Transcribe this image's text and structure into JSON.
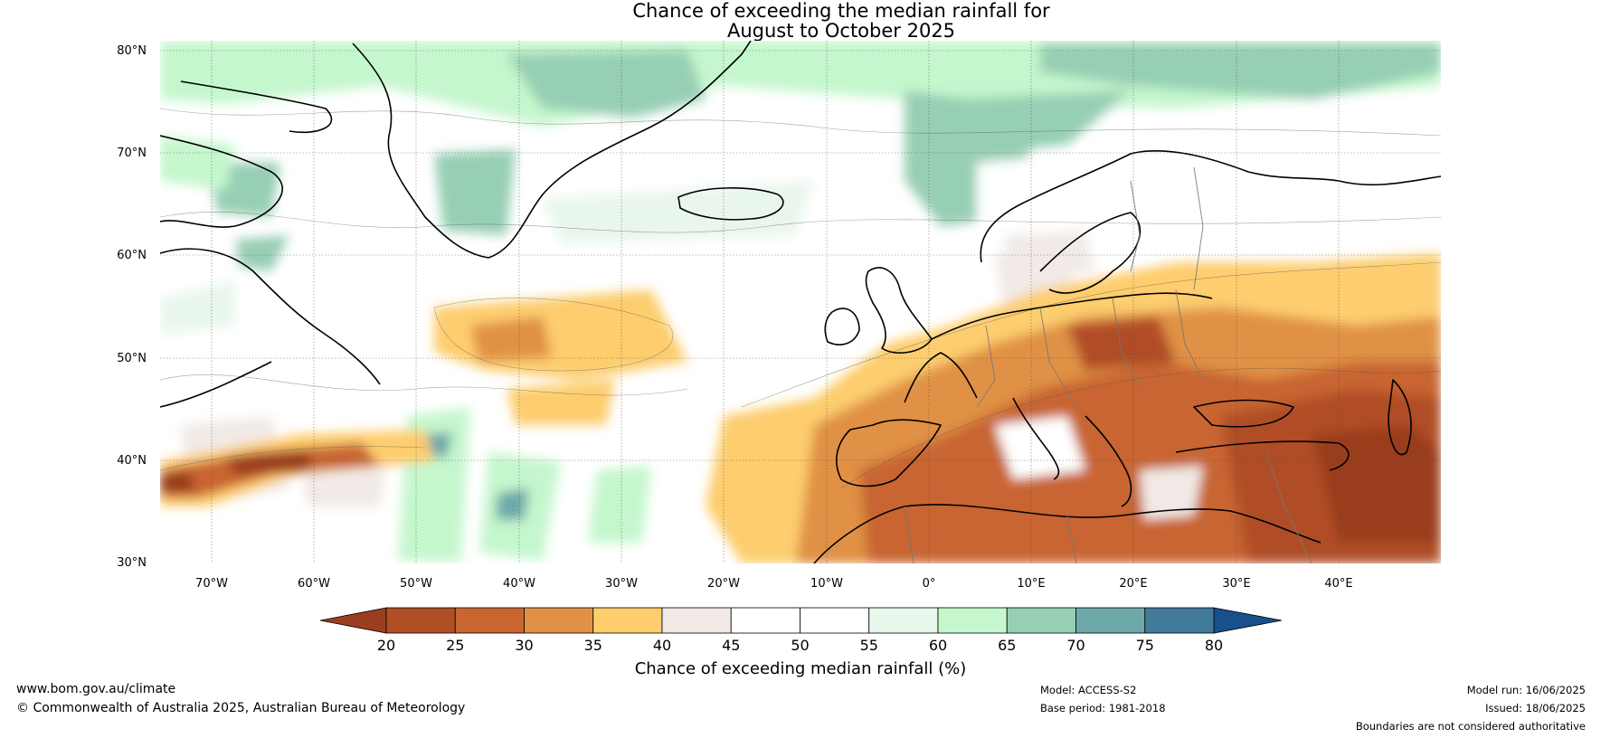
{
  "title": {
    "line1": "Chance of exceeding the median rainfall for",
    "line2": "August to October 2025"
  },
  "axes": {
    "lat_labels": [
      "80°N",
      "70°N",
      "60°N",
      "50°N",
      "40°N",
      "30°N"
    ],
    "lon_labels": [
      "70°W",
      "60°W",
      "50°W",
      "40°W",
      "30°W",
      "20°W",
      "10°W",
      "0°",
      "10°E",
      "20°E",
      "30°E",
      "40°E"
    ]
  },
  "colorbar": {
    "ticks": [
      "20",
      "25",
      "30",
      "35",
      "40",
      "45",
      "50",
      "55",
      "60",
      "65",
      "70",
      "75",
      "80"
    ],
    "colors": [
      "#9a3e1f",
      "#b04e26",
      "#c86530",
      "#e09145",
      "#fdcd6e",
      "#f1eae6",
      "#ffffff",
      "#ffffff",
      "#e9f6ec",
      "#c5f7cd",
      "#97cfb4",
      "#6ea8a9",
      "#427a9a",
      "#17508a"
    ],
    "label": "Chance of exceeding median rainfall (%)"
  },
  "footer": {
    "website": "www.bom.gov.au/climate",
    "copyright": "© Commonwealth of Australia 2025, Australian Bureau of Meteorology",
    "model": "Model: ACCESS-S2",
    "base_period": "Base period: 1981-2018",
    "model_run": "Model run: 16/06/2025",
    "issued": "Issued: 18/06/2025",
    "disclaimer": "Boundaries are not considered authoritative"
  }
}
